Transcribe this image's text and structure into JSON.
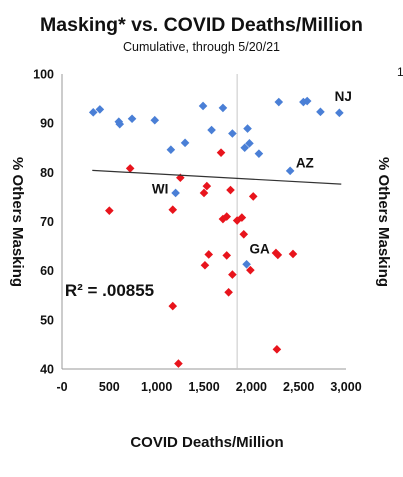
{
  "chart_data": {
    "type": "scatter",
    "title": "Masking* vs. COVID Deaths/Million",
    "subtitle": "Cumulative, through 5/20/21",
    "xlabel": "COVID Deaths/Million",
    "ylabel": "% Others Masking",
    "ylabel_right": "% Others Masking",
    "right_edge_fragment": "1",
    "xlim": [
      0,
      3000
    ],
    "ylim": [
      40,
      100
    ],
    "x_tick_labels": [
      "-0",
      "500",
      "1,000",
      "1,500",
      "2,000",
      "2,500",
      "3,000"
    ],
    "y_tick_labels": [
      "40",
      "50",
      "60",
      "70",
      "80",
      "90",
      "100"
    ],
    "grid": false,
    "reference_line_x": 1850,
    "colors": {
      "blue_series": "#4a7fd6",
      "red_series": "#e8141c",
      "trendline": "#333333",
      "reference_line": "#c8c8c8"
    },
    "annotations": [
      {
        "text": "NJ",
        "x": 2880,
        "y": 94.5
      },
      {
        "text": "AZ",
        "x": 2470,
        "y": 81
      },
      {
        "text": "WI",
        "x": 950,
        "y": 75.7
      },
      {
        "text": "GA",
        "x": 1980,
        "y": 63.5
      },
      {
        "text": "R² = .00855",
        "x": 30,
        "y": 54.8
      }
    ],
    "trendline": {
      "x": [
        320,
        2950
      ],
      "y": [
        80.4,
        77.6
      ]
    },
    "series": [
      {
        "color": "#4a7fd6",
        "points": [
          [
            330,
            92.2
          ],
          [
            400,
            92.8
          ],
          [
            600,
            90.3
          ],
          [
            610,
            89.8
          ],
          [
            740,
            90.9
          ],
          [
            980,
            90.6
          ],
          [
            1150,
            84.6
          ],
          [
            1300,
            86.0
          ],
          [
            1490,
            93.5
          ],
          [
            1580,
            88.6
          ],
          [
            1700,
            93.1
          ],
          [
            1800,
            87.9
          ],
          [
            1960,
            88.9
          ],
          [
            1930,
            85.0
          ],
          [
            1980,
            85.9
          ],
          [
            2080,
            83.8
          ],
          [
            2290,
            94.3
          ],
          [
            2550,
            94.3
          ],
          [
            2590,
            94.5
          ],
          [
            2730,
            92.3
          ],
          [
            2930,
            92.1
          ],
          [
            2410,
            80.3
          ],
          [
            1200,
            75.8
          ],
          [
            1950,
            61.3
          ]
        ]
      },
      {
        "color": "#e8141c",
        "points": [
          [
            500,
            72.2
          ],
          [
            720,
            80.8
          ],
          [
            1170,
            72.4
          ],
          [
            1250,
            78.9
          ],
          [
            1500,
            75.8
          ],
          [
            1530,
            77.2
          ],
          [
            1680,
            84.0
          ],
          [
            1700,
            70.5
          ],
          [
            1740,
            71.0
          ],
          [
            1780,
            76.4
          ],
          [
            1850,
            70.2
          ],
          [
            1900,
            70.8
          ],
          [
            1920,
            67.4
          ],
          [
            2020,
            75.1
          ],
          [
            1550,
            63.3
          ],
          [
            1510,
            61.1
          ],
          [
            1740,
            63.1
          ],
          [
            1800,
            59.2
          ],
          [
            1990,
            60.1
          ],
          [
            2260,
            63.6
          ],
          [
            2280,
            63.2
          ],
          [
            2440,
            63.4
          ],
          [
            1760,
            55.6
          ],
          [
            1170,
            52.8
          ],
          [
            2270,
            44.0
          ],
          [
            1230,
            41.1
          ]
        ]
      }
    ]
  }
}
